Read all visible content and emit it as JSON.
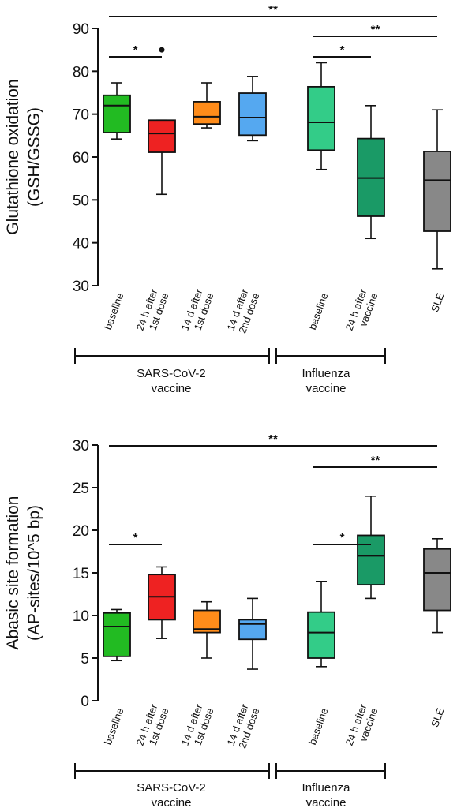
{
  "colors": {
    "baseline_sars": "#22bb22",
    "h24_sars": "#ee2222",
    "d14_first": "#ff8c1a",
    "d14_second": "#55a8f0",
    "baseline_flu": "#33cc88",
    "h24_flu": "#1a9a66",
    "sle": "#888888",
    "axis": "#111111"
  },
  "chart_data": [
    {
      "type": "box",
      "ylabel": [
        "Glutathione oxidation",
        "(GSH/GSSG)"
      ],
      "ylim": [
        30,
        90
      ],
      "yticks": [
        30,
        40,
        50,
        60,
        70,
        80,
        90
      ],
      "categories": [
        "baseline",
        "24 h after|1st dose",
        "14 d after|1st dose",
        "14 d after|2nd dose",
        "baseline",
        "24 h after|vaccine",
        "SLE"
      ],
      "boxes": [
        {
          "whisker_low": 64.2,
          "q1": 65.7,
          "median": 72,
          "q3": 74.4,
          "whisker_high": 77.3,
          "color": "#22bb22"
        },
        {
          "whisker_low": 51.3,
          "q1": 61.1,
          "median": 65.5,
          "q3": 68.6,
          "whisker_high": 68.6,
          "outliers": [
            85
          ],
          "color": "#ee2222"
        },
        {
          "whisker_low": 66.8,
          "q1": 67.7,
          "median": 69.4,
          "q3": 72.9,
          "whisker_high": 77.3,
          "color": "#ff8c1a"
        },
        {
          "whisker_low": 63.8,
          "q1": 65.1,
          "median": 69.2,
          "q3": 74.9,
          "whisker_high": 78.8,
          "color": "#55a8f0"
        },
        {
          "whisker_low": 57.1,
          "q1": 61.6,
          "median": 68.1,
          "q3": 76.4,
          "whisker_high": 82.0,
          "color": "#33cc88"
        },
        {
          "whisker_low": 41.0,
          "q1": 46.2,
          "median": 55.1,
          "q3": 64.3,
          "whisker_high": 72.0,
          "color": "#1a9a66"
        },
        {
          "whisker_low": 33.9,
          "q1": 42.7,
          "median": 54.6,
          "q3": 61.3,
          "whisker_high": 71.0,
          "color": "#888888"
        }
      ],
      "significance": [
        {
          "from": 0,
          "to": 6,
          "label": "**",
          "level": "top"
        },
        {
          "from": 0,
          "to": 1,
          "label": "*",
          "level": "low"
        },
        {
          "from": 4,
          "to": 6,
          "label": "**",
          "level": "mid"
        },
        {
          "from": 4,
          "to": 5,
          "label": "*",
          "level": "low"
        }
      ],
      "groups": [
        {
          "label": "SARS-CoV-2|vaccine",
          "from": 0,
          "to": 3
        },
        {
          "label": "Influenza|vaccine",
          "from": 4,
          "to": 5
        }
      ]
    },
    {
      "type": "box",
      "ylabel": [
        "Abasic site formation",
        "(AP-sites/10^5 bp)"
      ],
      "ylim": [
        0,
        30
      ],
      "yticks": [
        0,
        5,
        10,
        15,
        20,
        25,
        30
      ],
      "categories": [
        "baseline",
        "24 h after|1st dose",
        "14 d after|1st dose",
        "14 d after|2nd dose",
        "baseline",
        "24 h after|vaccine",
        "SLE"
      ],
      "boxes": [
        {
          "whisker_low": 4.7,
          "q1": 5.2,
          "median": 8.7,
          "q3": 10.3,
          "whisker_high": 10.7,
          "color": "#22bb22"
        },
        {
          "whisker_low": 7.3,
          "q1": 9.5,
          "median": 12.2,
          "q3": 14.8,
          "whisker_high": 15.7,
          "color": "#ee2222"
        },
        {
          "whisker_low": 5.0,
          "q1": 8.0,
          "median": 8.4,
          "q3": 10.6,
          "whisker_high": 11.6,
          "color": "#ff8c1a"
        },
        {
          "whisker_low": 3.7,
          "q1": 7.2,
          "median": 9.0,
          "q3": 9.5,
          "whisker_high": 12.0,
          "color": "#55a8f0"
        },
        {
          "whisker_low": 4.0,
          "q1": 5.0,
          "median": 8.0,
          "q3": 10.4,
          "whisker_high": 14.0,
          "color": "#33cc88"
        },
        {
          "whisker_low": 12.0,
          "q1": 13.6,
          "median": 17.0,
          "q3": 19.4,
          "whisker_high": 24.0,
          "color": "#1a9a66"
        },
        {
          "whisker_low": 8.0,
          "q1": 10.6,
          "median": 15.0,
          "q3": 17.8,
          "whisker_high": 19.0,
          "color": "#888888"
        }
      ],
      "significance": [
        {
          "from": 0,
          "to": 6,
          "label": "**",
          "level": "top"
        },
        {
          "from": 0,
          "to": 1,
          "label": "*",
          "level": "low"
        },
        {
          "from": 4,
          "to": 6,
          "label": "**",
          "level": "mid"
        },
        {
          "from": 4,
          "to": 5,
          "label": "*",
          "level": "low"
        }
      ],
      "groups": [
        {
          "label": "SARS-CoV-2|vaccine",
          "from": 0,
          "to": 3
        },
        {
          "label": "Influenza|vaccine",
          "from": 4,
          "to": 5
        }
      ]
    }
  ]
}
